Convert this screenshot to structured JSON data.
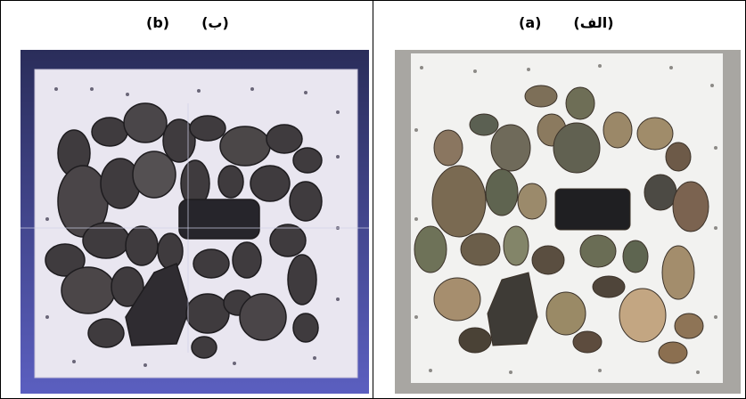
{
  "panels": {
    "left": {
      "label_latin": "(b)",
      "label_rtl": "(ب)",
      "description_colors": {
        "bg": "#3a3f7a",
        "board": "#e6e2ee",
        "stone": "#3e3a3c"
      }
    },
    "right": {
      "label_latin": "(a)",
      "label_rtl": "(الف)",
      "description_colors": {
        "bg": "#a9a7a3",
        "board": "#f1f1ef",
        "stone": "#7a6a52"
      }
    }
  }
}
